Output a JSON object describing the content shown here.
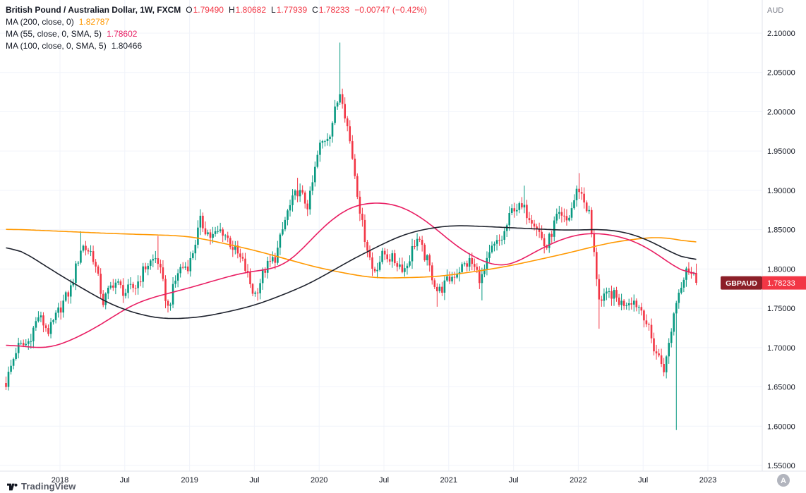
{
  "legend": {
    "title": "British Pound / Australian Dollar, 1W, FXCM",
    "ohlc": {
      "o_label": "O",
      "o": "1.79490",
      "h_label": "H",
      "h": "1.80682",
      "l_label": "L",
      "l": "1.77939",
      "c_label": "C",
      "c": "1.78233",
      "change": "−0.00747 (−0.42%)"
    },
    "ma_rows": [
      {
        "label": "MA (200, close, 0)",
        "value": "1.82787"
      },
      {
        "label": "MA (55, close, 0, SMA, 5)",
        "value": "1.78602"
      },
      {
        "label": "MA (100, close, 0, SMA, 5)",
        "value": "1.80466"
      }
    ]
  },
  "axes": {
    "price": {
      "currency": "AUD",
      "min": 1.55,
      "max": 2.1,
      "ticks": [
        {
          "label": "2.10000",
          "value": 2.1
        },
        {
          "label": "2.05000",
          "value": 2.05
        },
        {
          "label": "2.00000",
          "value": 2.0
        },
        {
          "label": "1.95000",
          "value": 1.95
        },
        {
          "label": "1.90000",
          "value": 1.9
        },
        {
          "label": "1.85000",
          "value": 1.85
        },
        {
          "label": "1.80000",
          "value": 1.8
        },
        {
          "label": "1.75000",
          "value": 1.75
        },
        {
          "label": "1.70000",
          "value": 1.7
        },
        {
          "label": "1.65000",
          "value": 1.65
        },
        {
          "label": "1.60000",
          "value": 1.6
        },
        {
          "label": "1.55000",
          "value": 1.55
        }
      ]
    },
    "time": {
      "ticks": [
        {
          "label": "2018",
          "month": "2018-01"
        },
        {
          "label": "Jul",
          "month": "2018-07"
        },
        {
          "label": "2019",
          "month": "2019-01"
        },
        {
          "label": "Jul",
          "month": "2019-07"
        },
        {
          "label": "2020",
          "month": "2020-01"
        },
        {
          "label": "Jul",
          "month": "2020-07"
        },
        {
          "label": "2021",
          "month": "2021-01"
        },
        {
          "label": "Jul",
          "month": "2021-07"
        },
        {
          "label": "2022",
          "month": "2022-01"
        },
        {
          "label": "Jul",
          "month": "2022-07"
        },
        {
          "label": "2023",
          "month": "2023-01"
        }
      ]
    },
    "auto_label": "A"
  },
  "footer": {
    "brand": "TradingView"
  },
  "colors": {
    "candle_up": "#089981",
    "candle_down": "#f23645",
    "grid": "#f0f3fa",
    "axis_border": "#e0e3eb",
    "axis_text": "#131722",
    "muted_text": "#787b86",
    "tag_symbol_bg": "#8c1f28",
    "tag_price_bg": "#f23645",
    "tag_text": "#ffffff",
    "auto_btn_bg": "#b2b5be",
    "auto_btn_text": "#ffffff",
    "brand_text": "#565a65",
    "brand_icon": "#131722"
  },
  "chart_data": {
    "type": "candlestick",
    "symbol": "GBPAUD",
    "description": "British Pound / Australian Dollar",
    "interval": "1W",
    "exchange": "FXCM",
    "y_range": [
      1.55,
      2.1
    ],
    "x_range": [
      "2017-08",
      "2023-01"
    ],
    "last_price_label": {
      "symbol": "GBPAUD",
      "price": "1.78233"
    },
    "last_candle": {
      "o": 1.7949,
      "h": 1.80682,
      "l": 1.77939,
      "c": 1.78233
    },
    "monthly": [
      {
        "m": "2017-08",
        "c": 1.655
      },
      {
        "m": "2017-09",
        "c": 1.7
      },
      {
        "m": "2017-10",
        "c": 1.705
      },
      {
        "m": "2017-11",
        "c": 1.74
      },
      {
        "m": "2017-12",
        "c": 1.72
      },
      {
        "m": "2018-01",
        "c": 1.75
      },
      {
        "m": "2018-02",
        "c": 1.775
      },
      {
        "m": "2018-03",
        "c": 1.83,
        "h": 1.848
      },
      {
        "m": "2018-04",
        "c": 1.82
      },
      {
        "m": "2018-05",
        "c": 1.758
      },
      {
        "m": "2018-06",
        "c": 1.785
      },
      {
        "m": "2018-07",
        "c": 1.77
      },
      {
        "m": "2018-08",
        "c": 1.778
      },
      {
        "m": "2018-09",
        "c": 1.805
      },
      {
        "m": "2018-10",
        "c": 1.815,
        "h": 1.842
      },
      {
        "m": "2018-11",
        "c": 1.75
      },
      {
        "m": "2018-12",
        "c": 1.8
      },
      {
        "m": "2019-01",
        "c": 1.806
      },
      {
        "m": "2019-02",
        "c": 1.86,
        "h": 1.876
      },
      {
        "m": "2019-03",
        "c": 1.84
      },
      {
        "m": "2019-04",
        "c": 1.85
      },
      {
        "m": "2019-05",
        "c": 1.828
      },
      {
        "m": "2019-06",
        "c": 1.806
      },
      {
        "m": "2019-07",
        "c": 1.766
      },
      {
        "m": "2019-08",
        "c": 1.8
      },
      {
        "m": "2019-09",
        "c": 1.816
      },
      {
        "m": "2019-10",
        "c": 1.87
      },
      {
        "m": "2019-11",
        "c": 1.9,
        "h": 1.916
      },
      {
        "m": "2019-12",
        "c": 1.88
      },
      {
        "m": "2020-01",
        "c": 1.955
      },
      {
        "m": "2020-02",
        "c": 1.975
      },
      {
        "m": "2020-03",
        "c": 2.03,
        "h": 2.088
      },
      {
        "m": "2020-04",
        "c": 1.95
      },
      {
        "m": "2020-05",
        "c": 1.855
      },
      {
        "m": "2020-06",
        "c": 1.796
      },
      {
        "m": "2020-07",
        "c": 1.82
      },
      {
        "m": "2020-08",
        "c": 1.81
      },
      {
        "m": "2020-09",
        "c": 1.8
      },
      {
        "m": "2020-10",
        "c": 1.84
      },
      {
        "m": "2020-11",
        "c": 1.81
      },
      {
        "m": "2020-12",
        "c": 1.77,
        "l": 1.752
      },
      {
        "m": "2021-01",
        "c": 1.786
      },
      {
        "m": "2021-02",
        "c": 1.8
      },
      {
        "m": "2021-03",
        "c": 1.81
      },
      {
        "m": "2021-04",
        "c": 1.786,
        "l": 1.76
      },
      {
        "m": "2021-05",
        "c": 1.825
      },
      {
        "m": "2021-06",
        "c": 1.84
      },
      {
        "m": "2021-07",
        "c": 1.88
      },
      {
        "m": "2021-08",
        "c": 1.875,
        "h": 1.906
      },
      {
        "m": "2021-09",
        "c": 1.86
      },
      {
        "m": "2021-10",
        "c": 1.825
      },
      {
        "m": "2021-11",
        "c": 1.866
      },
      {
        "m": "2021-12",
        "c": 1.86
      },
      {
        "m": "2022-01",
        "c": 1.905,
        "h": 1.922
      },
      {
        "m": "2022-02",
        "c": 1.87
      },
      {
        "m": "2022-03",
        "c": 1.756,
        "l": 1.724
      },
      {
        "m": "2022-04",
        "c": 1.77
      },
      {
        "m": "2022-05",
        "c": 1.756
      },
      {
        "m": "2022-06",
        "c": 1.762
      },
      {
        "m": "2022-07",
        "c": 1.746
      },
      {
        "m": "2022-08",
        "c": 1.7
      },
      {
        "m": "2022-09",
        "c": 1.672
      },
      {
        "m": "2022-10",
        "c": 1.756,
        "l": 1.595
      },
      {
        "m": "2022-11",
        "c": 1.804
      },
      {
        "m": "2022-12",
        "c": 1.78233
      }
    ],
    "moving_averages": [
      {
        "name": "MA 200",
        "period": 200,
        "color": "#ff9800",
        "anchors": [
          [
            "2017-08",
            1.851
          ],
          [
            "2018-06",
            1.845
          ],
          [
            "2019-01",
            1.842
          ],
          [
            "2019-07",
            1.824
          ],
          [
            "2020-01",
            1.801
          ],
          [
            "2020-06",
            1.788
          ],
          [
            "2020-12",
            1.79
          ],
          [
            "2021-06",
            1.802
          ],
          [
            "2021-12",
            1.82
          ],
          [
            "2022-04",
            1.834
          ],
          [
            "2022-08",
            1.841
          ],
          [
            "2022-10",
            1.84
          ],
          [
            "2022-12",
            1.828
          ]
        ]
      },
      {
        "name": "MA 55",
        "period": 55,
        "color": "#e91e63",
        "anchors": [
          [
            "2017-08",
            1.705
          ],
          [
            "2017-12",
            1.697
          ],
          [
            "2018-04",
            1.722
          ],
          [
            "2018-08",
            1.758
          ],
          [
            "2019-01",
            1.776
          ],
          [
            "2019-06",
            1.796
          ],
          [
            "2019-10",
            1.802
          ],
          [
            "2020-01",
            1.85
          ],
          [
            "2020-04",
            1.883
          ],
          [
            "2020-08",
            1.885
          ],
          [
            "2020-11",
            1.862
          ],
          [
            "2021-02",
            1.824
          ],
          [
            "2021-06",
            1.798
          ],
          [
            "2021-10",
            1.83
          ],
          [
            "2022-01",
            1.846
          ],
          [
            "2022-04",
            1.845
          ],
          [
            "2022-07",
            1.832
          ],
          [
            "2022-09",
            1.812
          ],
          [
            "2022-11",
            1.792
          ],
          [
            "2022-12",
            1.786
          ]
        ]
      },
      {
        "name": "MA 100",
        "period": 100,
        "color": "#1e222d",
        "anchors": [
          [
            "2017-08",
            1.836
          ],
          [
            "2018-01",
            1.792
          ],
          [
            "2018-06",
            1.752
          ],
          [
            "2018-10",
            1.736
          ],
          [
            "2019-02",
            1.738
          ],
          [
            "2019-07",
            1.753
          ],
          [
            "2019-12",
            1.78
          ],
          [
            "2020-04",
            1.812
          ],
          [
            "2020-09",
            1.846
          ],
          [
            "2021-01",
            1.856
          ],
          [
            "2021-06",
            1.853
          ],
          [
            "2021-12",
            1.849
          ],
          [
            "2022-04",
            1.851
          ],
          [
            "2022-07",
            1.841
          ],
          [
            "2022-10",
            1.818
          ],
          [
            "2022-12",
            1.805
          ]
        ]
      }
    ]
  }
}
